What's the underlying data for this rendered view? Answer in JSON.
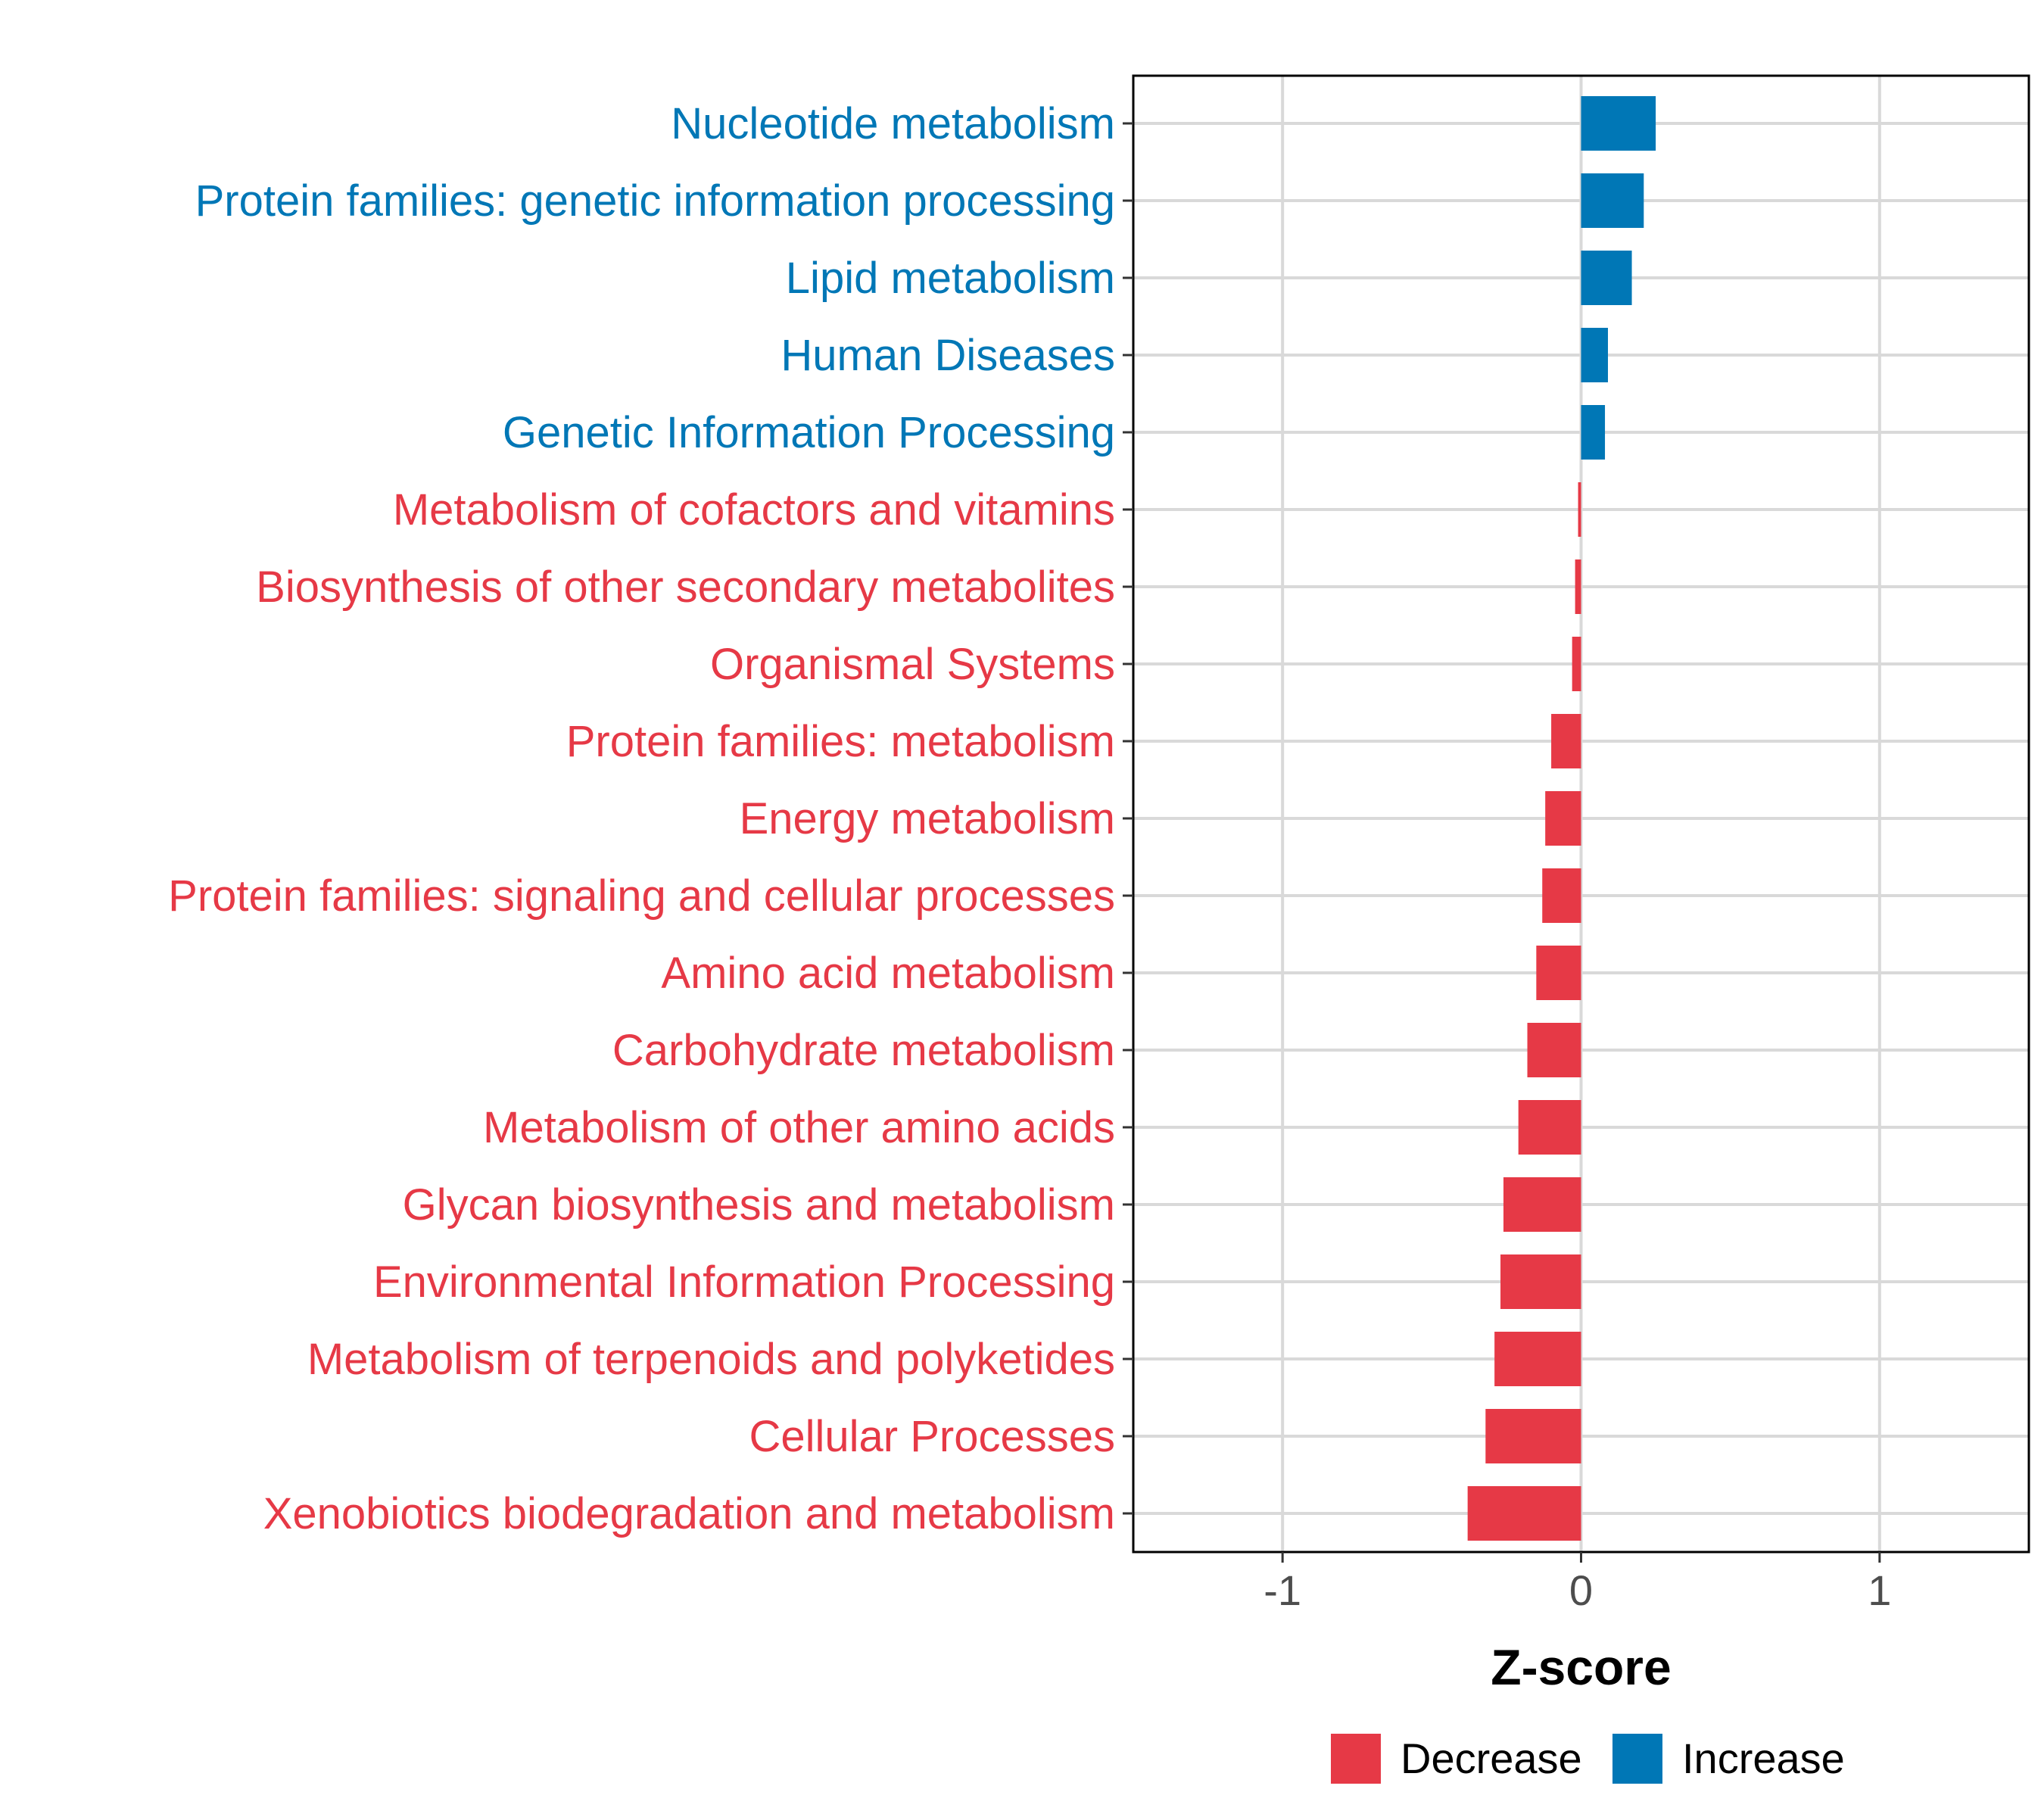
{
  "chart_data": {
    "type": "bar",
    "orientation": "horizontal",
    "categories": [
      "Nucleotide metabolism",
      "Protein families: genetic information processing",
      "Lipid metabolism",
      "Human Diseases",
      "Genetic Information Processing",
      "Metabolism of cofactors and vitamins",
      "Biosynthesis of other secondary metabolites",
      "Organismal Systems",
      "Protein families: metabolism",
      "Energy metabolism",
      "Protein families: signaling and cellular processes",
      "Amino acid metabolism",
      "Carbohydrate metabolism",
      "Metabolism of other amino acids",
      "Glycan biosynthesis and metabolism",
      "Environmental Information Processing",
      "Metabolism of terpenoids and polyketides",
      "Cellular Processes",
      "Xenobiotics biodegradation and metabolism"
    ],
    "values": [
      0.25,
      0.21,
      0.17,
      0.09,
      0.08,
      -0.01,
      -0.02,
      -0.03,
      -0.1,
      -0.12,
      -0.13,
      -0.15,
      -0.18,
      -0.21,
      -0.26,
      -0.27,
      -0.29,
      -0.32,
      -0.38
    ],
    "groups": [
      "Increase",
      "Increase",
      "Increase",
      "Increase",
      "Increase",
      "Decrease",
      "Decrease",
      "Decrease",
      "Decrease",
      "Decrease",
      "Decrease",
      "Decrease",
      "Decrease",
      "Decrease",
      "Decrease",
      "Decrease",
      "Decrease",
      "Decrease",
      "Decrease"
    ],
    "xlabel": "Z-score",
    "ylabel": "",
    "xlim": [
      -1.5,
      1.5
    ],
    "xticks": [
      -1,
      0,
      1
    ],
    "xtick_labels": [
      "-1",
      "0",
      "1"
    ],
    "grid": true,
    "legend": {
      "position": "bottom",
      "entries": [
        {
          "name": "Decrease",
          "color": "#E63946"
        },
        {
          "name": "Increase",
          "color": "#0077B6"
        }
      ]
    },
    "colors": {
      "Decrease": "#E63946",
      "Increase": "#0077B6"
    }
  }
}
